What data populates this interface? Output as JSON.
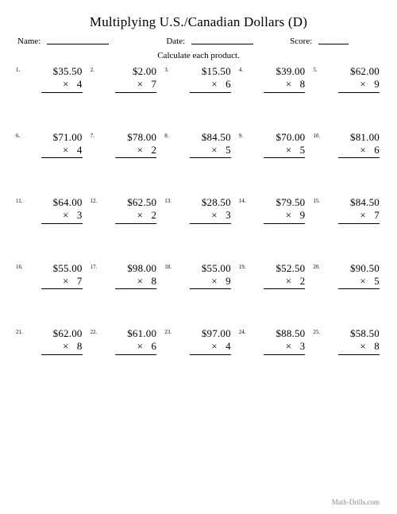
{
  "title": "Multiplying U.S./Canadian Dollars (D)",
  "header": {
    "name_label": "Name:",
    "date_label": "Date:",
    "score_label": "Score:"
  },
  "instruction": "Calculate each product.",
  "problems": [
    {
      "n": "1.",
      "top": "$35.50",
      "bot": "×   4"
    },
    {
      "n": "2.",
      "top": "$2.00",
      "bot": "×   7"
    },
    {
      "n": "3.",
      "top": "$15.50",
      "bot": "×   6"
    },
    {
      "n": "4.",
      "top": "$39.00",
      "bot": "×   8"
    },
    {
      "n": "5.",
      "top": "$62.00",
      "bot": "×   9"
    },
    {
      "n": "6.",
      "top": "$71.00",
      "bot": "×   4"
    },
    {
      "n": "7.",
      "top": "$78.00",
      "bot": "×   2"
    },
    {
      "n": "8.",
      "top": "$84.50",
      "bot": "×   5"
    },
    {
      "n": "9.",
      "top": "$70.00",
      "bot": "×   5"
    },
    {
      "n": "10.",
      "top": "$81.00",
      "bot": "×   6"
    },
    {
      "n": "11.",
      "top": "$64.00",
      "bot": "×   3"
    },
    {
      "n": "12.",
      "top": "$62.50",
      "bot": "×   2"
    },
    {
      "n": "13.",
      "top": "$28.50",
      "bot": "×   3"
    },
    {
      "n": "14.",
      "top": "$79.50",
      "bot": "×   9"
    },
    {
      "n": "15.",
      "top": "$84.50",
      "bot": "×   7"
    },
    {
      "n": "16.",
      "top": "$55.00",
      "bot": "×   7"
    },
    {
      "n": "17.",
      "top": "$98.00",
      "bot": "×   8"
    },
    {
      "n": "18.",
      "top": "$55.00",
      "bot": "×   9"
    },
    {
      "n": "19.",
      "top": "$52.50",
      "bot": "×   2"
    },
    {
      "n": "20.",
      "top": "$90.50",
      "bot": "×   5"
    },
    {
      "n": "21.",
      "top": "$62.00",
      "bot": "×   8"
    },
    {
      "n": "22.",
      "top": "$61.00",
      "bot": "×   6"
    },
    {
      "n": "23.",
      "top": "$97.00",
      "bot": "×   4"
    },
    {
      "n": "24.",
      "top": "$88.50",
      "bot": "×   3"
    },
    {
      "n": "25.",
      "top": "$58.50",
      "bot": "×   8"
    }
  ],
  "footer": "Math-Drills.com"
}
